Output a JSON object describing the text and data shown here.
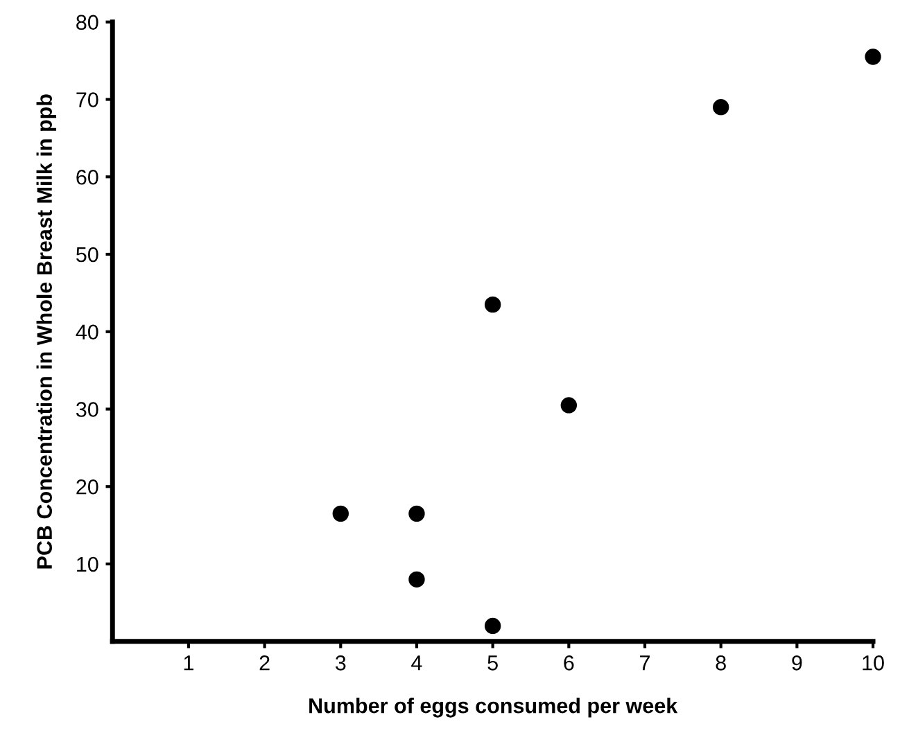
{
  "chart_data": {
    "type": "scatter",
    "xlabel": "Number of eggs consumed per week",
    "ylabel": "PCB Concentration in Whole Breast Milk in ppb",
    "x": [
      3,
      4,
      4,
      5,
      5,
      6,
      8,
      10
    ],
    "values": [
      16.5,
      16.5,
      8,
      2,
      43.5,
      30.5,
      69,
      75.5
    ],
    "color": "#000000",
    "marker": "circle",
    "xlim": [
      0,
      10
    ],
    "ylim": [
      0,
      80
    ],
    "xticks": [
      1,
      2,
      3,
      4,
      5,
      6,
      7,
      8,
      9,
      10
    ],
    "yticks": [
      10,
      20,
      30,
      40,
      50,
      60,
      70,
      80
    ],
    "grid": false,
    "legend": false
  }
}
